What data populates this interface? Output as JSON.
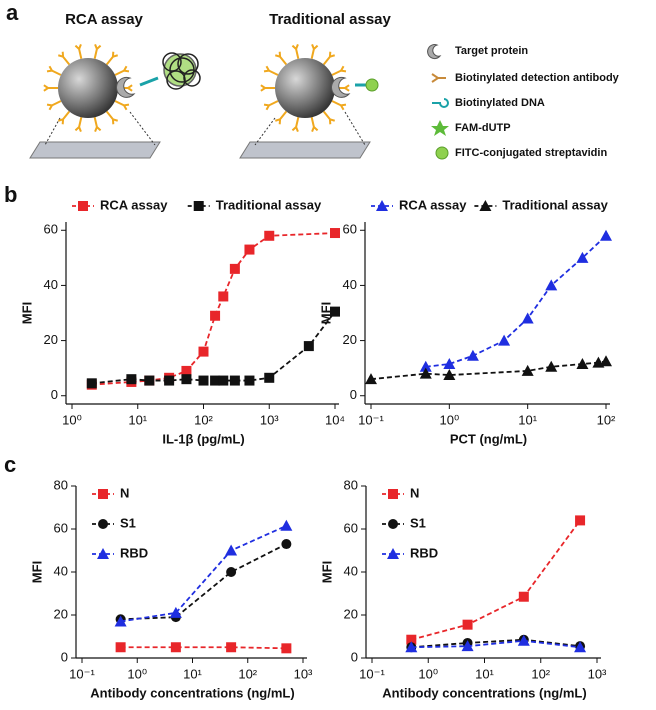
{
  "panels": [
    "a",
    "b",
    "c"
  ],
  "schematic": {
    "titles": [
      "RCA assay",
      "Traditional assay"
    ],
    "legend": [
      "Target protein",
      "Biotinylated detection antibody",
      "Biotinylated DNA",
      "FAM-dUTP",
      "FITC-conjugated streptavidin"
    ]
  },
  "chart_data": [
    {
      "type": "line",
      "xlabel": "IL-1β (pg/mL)",
      "ylabel": "MFI",
      "xscale": "log",
      "legend": "top",
      "xlim": [
        1,
        10000
      ],
      "xticks": [
        {
          "value": 1,
          "label": "10⁰"
        },
        {
          "value": 10,
          "label": "10¹"
        },
        {
          "value": 100,
          "label": "10²"
        },
        {
          "value": 1000,
          "label": "10³"
        },
        {
          "value": 10000,
          "label": "10⁴"
        }
      ],
      "ylim": [
        -3,
        63
      ],
      "yticks": [
        0,
        20,
        40,
        60
      ],
      "series": [
        {
          "name": "RCA assay",
          "color": "#e8262a",
          "marker": "square",
          "x": [
            2,
            8,
            15,
            30,
            55,
            100,
            150,
            200,
            300,
            500,
            1000,
            10000
          ],
          "values": [
            4,
            5,
            5.5,
            6.5,
            9,
            16,
            29,
            36,
            46,
            53,
            58,
            59
          ]
        },
        {
          "name": "Traditional assay",
          "color": "#111111",
          "marker": "square",
          "x": [
            2,
            8,
            15,
            30,
            55,
            100,
            150,
            200,
            300,
            500,
            1000,
            4000,
            10000
          ],
          "values": [
            4.5,
            6,
            5.5,
            5.5,
            6,
            5.5,
            5.5,
            5.5,
            5.5,
            5.5,
            6.5,
            18,
            30.5
          ]
        }
      ]
    },
    {
      "type": "line",
      "xlabel": "PCT (ng/mL)",
      "ylabel": "MFI",
      "xscale": "log",
      "legend": "top",
      "xlim": [
        0.1,
        100
      ],
      "xticks": [
        {
          "value": 0.1,
          "label": "10⁻¹"
        },
        {
          "value": 1,
          "label": "10⁰"
        },
        {
          "value": 10,
          "label": "10¹"
        },
        {
          "value": 100,
          "label": "10²"
        }
      ],
      "ylim": [
        -3,
        63
      ],
      "yticks": [
        0,
        20,
        40,
        60
      ],
      "series": [
        {
          "name": "RCA assay",
          "color": "#1f2ee0",
          "marker": "triangle",
          "x": [
            0.5,
            1,
            2,
            5,
            10,
            20,
            50,
            100
          ],
          "values": [
            10.5,
            11.5,
            14.5,
            20,
            28,
            40,
            50,
            58
          ]
        },
        {
          "name": "Traditional assay",
          "color": "#111111",
          "marker": "triangle",
          "x": [
            0.1,
            0.5,
            1,
            10,
            20,
            50,
            80,
            100
          ],
          "values": [
            6,
            8,
            7.5,
            9,
            10.5,
            11.5,
            12,
            12.5
          ]
        }
      ]
    },
    {
      "type": "line",
      "xlabel": "Antibody concentrations (ng/mL)",
      "ylabel": "MFI",
      "xscale": "log",
      "legend": "upper left",
      "xlim": [
        0.1,
        1000
      ],
      "xticks": [
        {
          "value": 0.1,
          "label": "10⁻¹"
        },
        {
          "value": 1,
          "label": "10⁰"
        },
        {
          "value": 10,
          "label": "10¹"
        },
        {
          "value": 100,
          "label": "10²"
        },
        {
          "value": 1000,
          "label": "10³"
        }
      ],
      "ylim": [
        0,
        80
      ],
      "yticks": [
        0,
        20,
        40,
        60,
        80
      ],
      "x": [
        0.5,
        5,
        50,
        500
      ],
      "series": [
        {
          "name": "N",
          "color": "#e8262a",
          "marker": "square",
          "values": [
            5,
            5,
            5,
            4.5
          ]
        },
        {
          "name": "S1",
          "color": "#111111",
          "marker": "circle",
          "values": [
            18,
            19,
            40,
            53
          ]
        },
        {
          "name": "RBD",
          "color": "#1f2ee0",
          "marker": "triangle",
          "values": [
            17,
            21,
            50,
            61.5
          ]
        }
      ]
    },
    {
      "type": "line",
      "xlabel": "Antibody concentrations (ng/mL)",
      "ylabel": "MFI",
      "xscale": "log",
      "legend": "upper left",
      "xlim": [
        0.1,
        1000
      ],
      "xticks": [
        {
          "value": 0.1,
          "label": "10⁻¹"
        },
        {
          "value": 1,
          "label": "10⁰"
        },
        {
          "value": 10,
          "label": "10¹"
        },
        {
          "value": 100,
          "label": "10²"
        },
        {
          "value": 1000,
          "label": "10³"
        }
      ],
      "ylim": [
        0,
        80
      ],
      "yticks": [
        0,
        20,
        40,
        60,
        80
      ],
      "x": [
        0.5,
        5,
        50,
        500
      ],
      "series": [
        {
          "name": "N",
          "color": "#e8262a",
          "marker": "square",
          "values": [
            8.5,
            15.5,
            28.5,
            64
          ]
        },
        {
          "name": "S1",
          "color": "#111111",
          "marker": "circle",
          "values": [
            5,
            7,
            8.5,
            5.5
          ]
        },
        {
          "name": "RBD",
          "color": "#1f2ee0",
          "marker": "triangle",
          "values": [
            5,
            5.5,
            8,
            5
          ]
        }
      ]
    }
  ]
}
